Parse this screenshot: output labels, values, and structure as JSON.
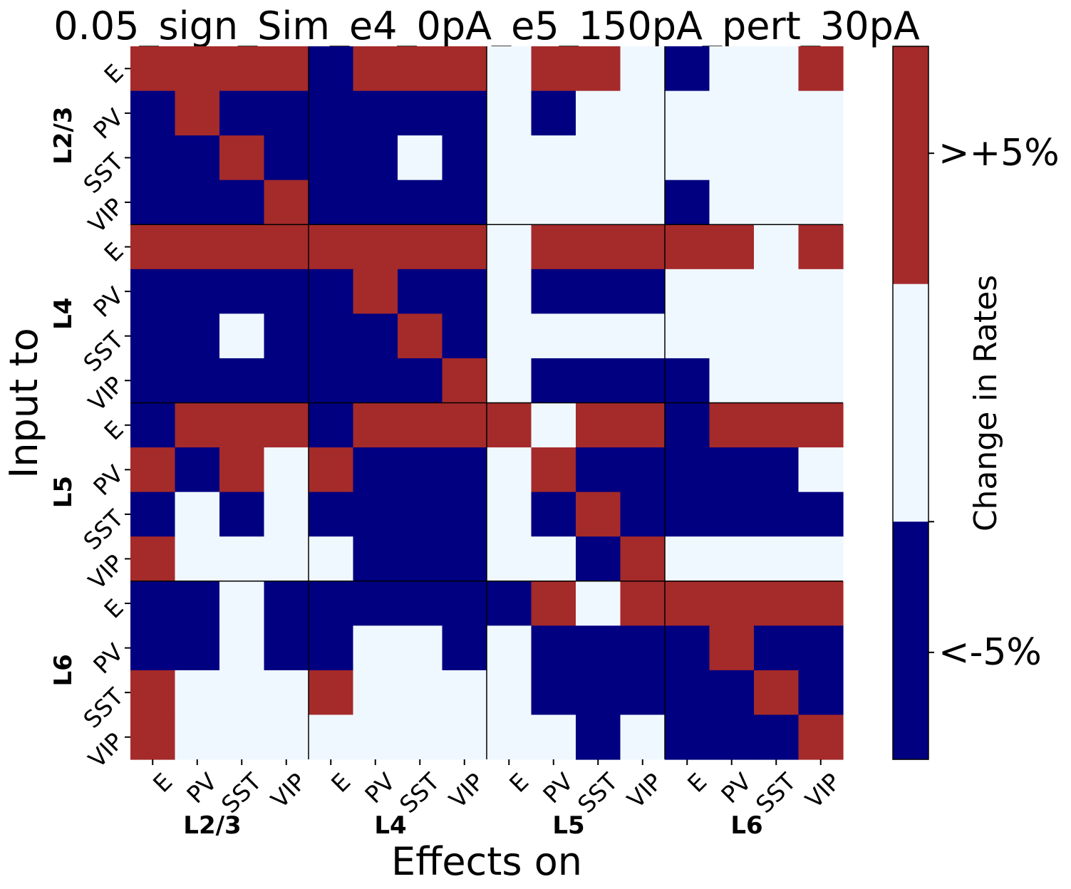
{
  "chart_data": {
    "type": "heatmap",
    "title": "0.05_sign_Sim_e4_0pA_e5_150pA_pert_30pA",
    "xlabel": "Effects on",
    "ylabel": "Input to",
    "cell_types": [
      "E",
      "PV",
      "SST",
      "VIP"
    ],
    "layers": [
      "L2/3",
      "L4",
      "L5",
      "L6"
    ],
    "colorbar": {
      "label": "Change in Rates",
      "ticks": [
        ">+5%",
        "<-5%"
      ],
      "levels": [
        {
          "value": -1,
          "color": "#000080"
        },
        {
          "value": 0,
          "color": "#f0f8ff"
        },
        {
          "value": 1,
          "color": "#a52a2a"
        }
      ]
    },
    "rows": [
      "L2/3 E",
      "L2/3 PV",
      "L2/3 SST",
      "L2/3 VIP",
      "L4 E",
      "L4 PV",
      "L4 SST",
      "L4 VIP",
      "L5 E",
      "L5 PV",
      "L5 SST",
      "L5 VIP",
      "L6 E",
      "L6 PV",
      "L6 SST",
      "L6 VIP"
    ],
    "columns": [
      "L2/3 E",
      "L2/3 PV",
      "L2/3 SST",
      "L2/3 VIP",
      "L4 E",
      "L4 PV",
      "L4 SST",
      "L4 VIP",
      "L5 E",
      "L5 PV",
      "L5 SST",
      "L5 VIP",
      "L6 E",
      "L6 PV",
      "L6 SST",
      "L6 VIP"
    ],
    "matrix": [
      [
        1,
        1,
        1,
        1,
        -1,
        1,
        1,
        1,
        0,
        1,
        1,
        0,
        -1,
        0,
        0,
        1
      ],
      [
        -1,
        1,
        -1,
        -1,
        -1,
        -1,
        -1,
        -1,
        0,
        -1,
        0,
        0,
        0,
        0,
        0,
        0
      ],
      [
        -1,
        -1,
        1,
        -1,
        -1,
        -1,
        0,
        -1,
        0,
        0,
        0,
        0,
        0,
        0,
        0,
        0
      ],
      [
        -1,
        -1,
        -1,
        1,
        -1,
        -1,
        -1,
        -1,
        0,
        0,
        0,
        0,
        -1,
        0,
        0,
        0
      ],
      [
        1,
        1,
        1,
        1,
        1,
        1,
        1,
        1,
        0,
        1,
        1,
        1,
        1,
        1,
        0,
        1
      ],
      [
        -1,
        -1,
        -1,
        -1,
        -1,
        1,
        -1,
        -1,
        0,
        -1,
        -1,
        -1,
        0,
        0,
        0,
        0
      ],
      [
        -1,
        -1,
        0,
        -1,
        -1,
        -1,
        1,
        -1,
        0,
        0,
        0,
        0,
        0,
        0,
        0,
        0
      ],
      [
        -1,
        -1,
        -1,
        -1,
        -1,
        -1,
        -1,
        1,
        0,
        -1,
        -1,
        -1,
        -1,
        0,
        0,
        0
      ],
      [
        -1,
        1,
        1,
        1,
        -1,
        1,
        1,
        1,
        1,
        0,
        1,
        1,
        -1,
        1,
        1,
        1
      ],
      [
        1,
        -1,
        1,
        0,
        1,
        -1,
        -1,
        -1,
        0,
        1,
        -1,
        -1,
        -1,
        -1,
        -1,
        0
      ],
      [
        -1,
        0,
        -1,
        0,
        -1,
        -1,
        -1,
        -1,
        0,
        -1,
        1,
        -1,
        -1,
        -1,
        -1,
        -1
      ],
      [
        1,
        0,
        0,
        0,
        0,
        -1,
        -1,
        -1,
        0,
        0,
        -1,
        1,
        0,
        0,
        0,
        0
      ],
      [
        -1,
        -1,
        0,
        -1,
        -1,
        -1,
        -1,
        -1,
        -1,
        1,
        0,
        1,
        1,
        1,
        1,
        1
      ],
      [
        -1,
        -1,
        0,
        -1,
        -1,
        0,
        0,
        -1,
        0,
        -1,
        -1,
        -1,
        -1,
        1,
        -1,
        -1
      ],
      [
        1,
        0,
        0,
        0,
        1,
        0,
        0,
        0,
        0,
        -1,
        -1,
        -1,
        -1,
        -1,
        1,
        -1
      ],
      [
        1,
        0,
        0,
        0,
        0,
        0,
        0,
        0,
        0,
        0,
        -1,
        0,
        -1,
        -1,
        -1,
        1
      ]
    ]
  }
}
